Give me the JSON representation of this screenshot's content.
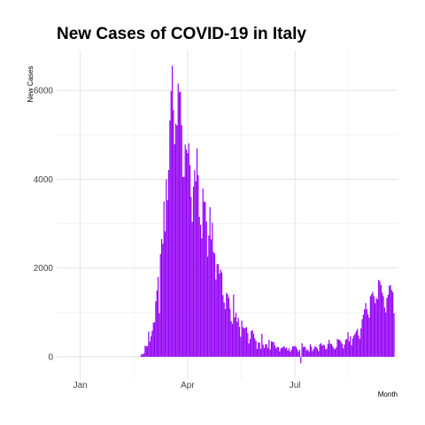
{
  "chart_data": {
    "type": "bar",
    "title": "New Cases of COVID-19 in Italy",
    "xlabel": "Month",
    "ylabel": "New Cases",
    "x_ticks": [
      {
        "label": "Jan",
        "date": "2020-01-01"
      },
      {
        "label": "Apr",
        "date": "2020-04-01"
      },
      {
        "label": "Jul",
        "date": "2020-07-01"
      }
    ],
    "y_ticks": [
      0,
      2000,
      4000,
      6000
    ],
    "xlim": [
      "2019-12-12",
      "2020-09-26"
    ],
    "ylim": [
      -500,
      6900
    ],
    "grid": true,
    "legend": "none",
    "bar_color": "#9300f5",
    "series": [
      {
        "start_date": "2020-02-21",
        "values": [
          14,
          62,
          50,
          78,
          250,
          238,
          240,
          566,
          342,
          466,
          587,
          769,
          778,
          1247,
          1492,
          1797,
          977,
          2313,
          2651,
          2547,
          3497,
          2823,
          4000,
          3526,
          4207,
          5322,
          5986,
          6557,
          5560,
          4789,
          5249,
          5210,
          6153,
          5959,
          5974,
          5217,
          4050,
          4053,
          4782,
          4668,
          4585,
          4805,
          4316,
          3599,
          3039,
          3836,
          4204,
          3951,
          4694,
          4092,
          3153,
          2972,
          2667,
          3786,
          3493,
          3491,
          3047,
          2256,
          2729,
          3370,
          2646,
          3021,
          2357,
          2324,
          1739,
          2091,
          2086,
          1872,
          1965,
          1900,
          1389,
          1221,
          1075,
          1444,
          1401,
          1327,
          1083,
          802,
          744,
          1402,
          888,
          992,
          789,
          875,
          675,
          451,
          813,
          665,
          642,
          652,
          669,
          531,
          300,
          397,
          584,
          593,
          516,
          416,
          355,
          178,
          318,
          321,
          177,
          518,
          270,
          197,
          280,
          283,
          202,
          379,
          163,
          346,
          338,
          331,
          251,
          192,
          224,
          218,
          122,
          187,
          201,
          223,
          235,
          192,
          208,
          138,
          193,
          114,
          162,
          230,
          233,
          249,
          219,
          169,
          114,
          163,
          -148,
          306,
          214,
          234,
          208,
          138,
          169,
          114,
          280,
          230,
          128,
          182,
          232,
          219,
          190,
          129,
          282,
          306,
          252,
          274,
          255,
          170,
          181,
          289,
          379,
          295,
          288,
          238,
          188,
          170,
          212,
          401,
          386,
          379,
          344,
          295,
          190,
          276,
          384,
          402,
          552,
          347,
          463,
          259,
          412,
          481,
          523,
          574,
          629,
          479,
          403,
          642,
          845,
          947,
          1071,
          1210,
          1071,
          953,
          878,
          1367,
          1411,
          1460,
          1365,
          1209,
          1326,
          1297,
          1733,
          1695,
          1616,
          1444,
          1365,
          1108,
          996,
          1326,
          1397,
          1597,
          1616,
          1501,
          1458,
          978
        ]
      }
    ]
  }
}
